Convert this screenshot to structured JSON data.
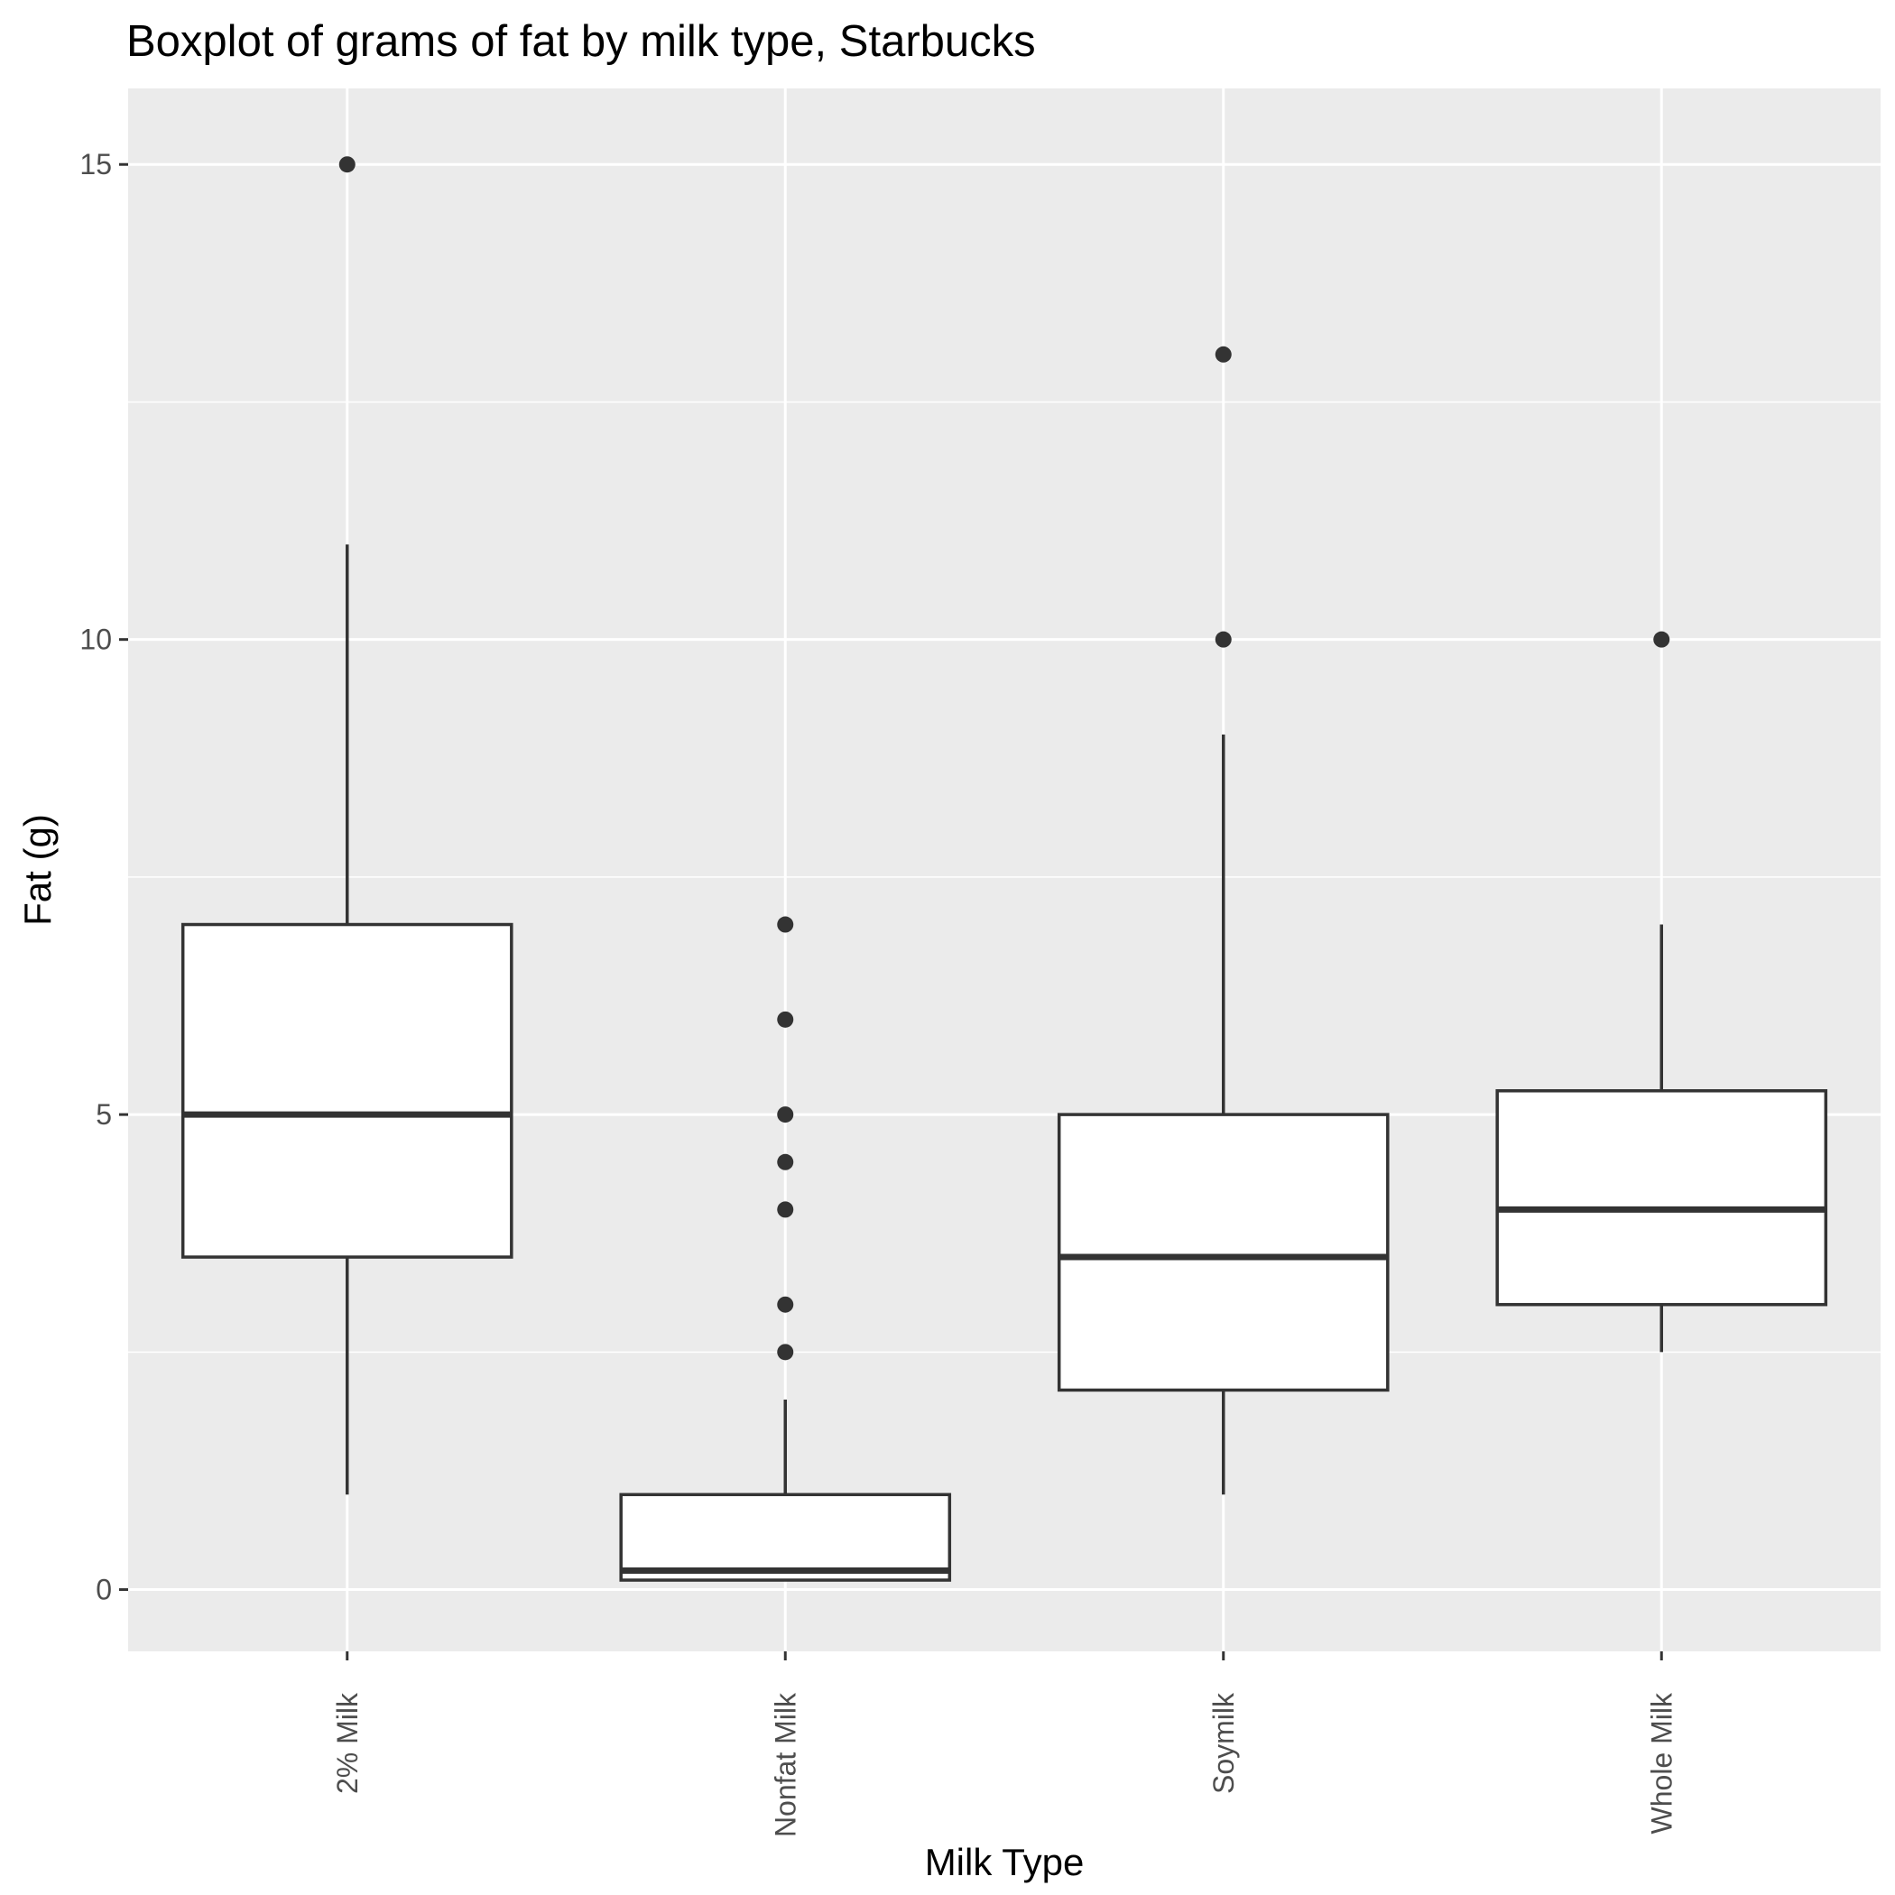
{
  "chart_data": {
    "type": "boxplot",
    "title": "Boxplot of grams of fat by milk type, Starbucks",
    "xlabel": "Milk Type",
    "ylabel": "Fat (g)",
    "ylim": [
      -0.65,
      15.8
    ],
    "y_ticks": [
      0,
      5,
      10,
      15
    ],
    "y_tick_labels": [
      "0",
      "5",
      "10",
      "15"
    ],
    "y_minor_ticks": [
      2.5,
      7.5,
      12.5
    ],
    "x_tick_label_rotation": "vertical",
    "grid": true,
    "categories": [
      "2% Milk",
      "Nonfat Milk",
      "Soymilk",
      "Whole Milk"
    ],
    "boxes": [
      {
        "category": "2% Milk",
        "min": 1,
        "q1": 3.5,
        "median": 5,
        "q3": 7,
        "max": 11,
        "outliers": [
          15
        ]
      },
      {
        "category": "Nonfat Milk",
        "min": 0.1,
        "q1": 0.1,
        "median": 0.2,
        "q3": 1,
        "max": 2,
        "outliers": [
          7,
          6,
          5,
          4.5,
          4,
          3,
          2.5
        ]
      },
      {
        "category": "Soymilk",
        "min": 1,
        "q1": 2.1,
        "median": 3.5,
        "q3": 5,
        "max": 9,
        "outliers": [
          13,
          10
        ]
      },
      {
        "category": "Whole Milk",
        "min": 2.5,
        "q1": 3,
        "median": 4,
        "q3": 5.25,
        "max": 7,
        "outliers": [
          10
        ]
      }
    ]
  }
}
